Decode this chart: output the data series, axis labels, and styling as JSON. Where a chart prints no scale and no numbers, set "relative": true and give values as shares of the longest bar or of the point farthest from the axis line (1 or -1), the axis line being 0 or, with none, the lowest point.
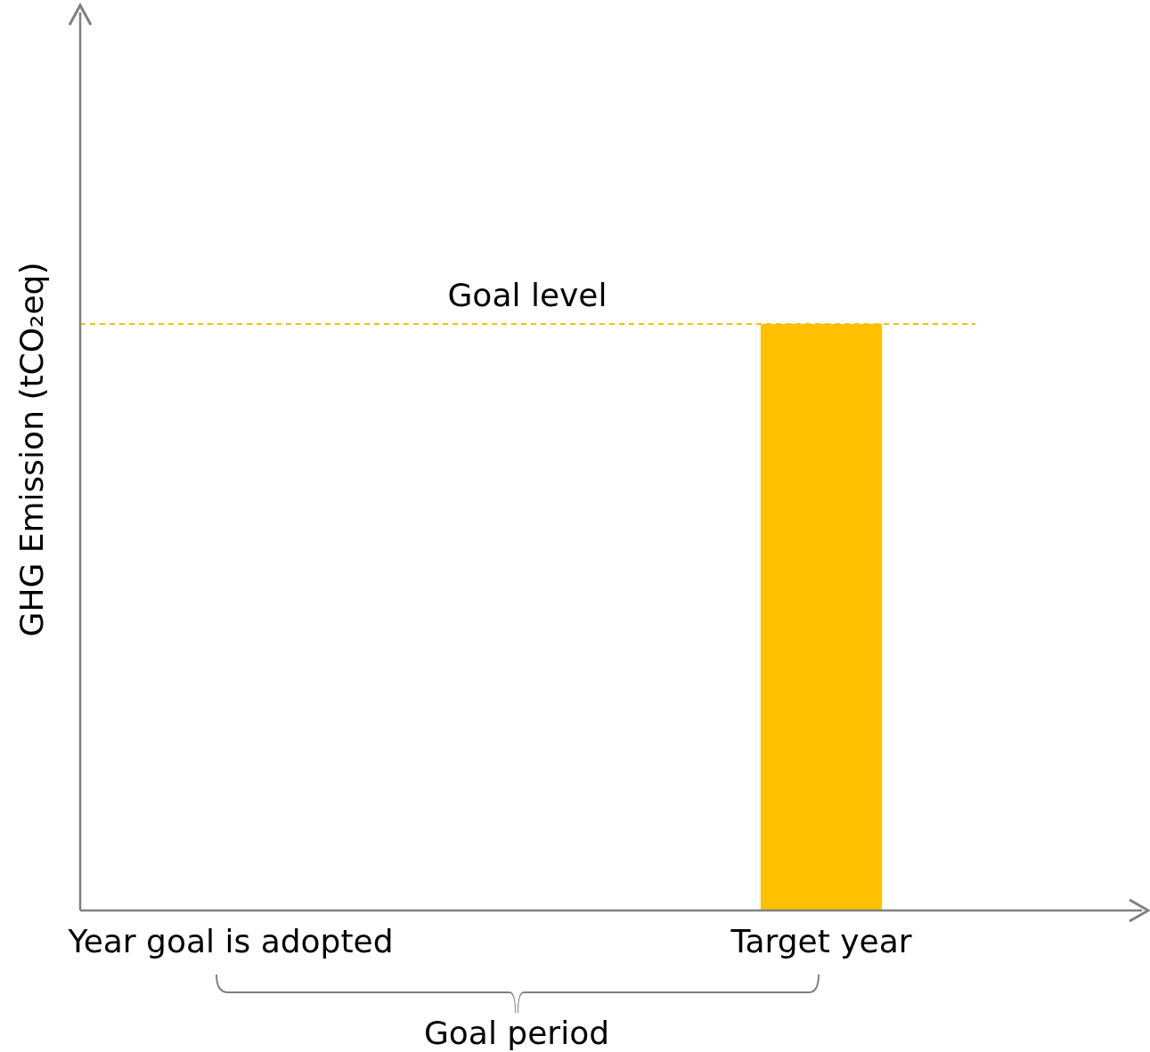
{
  "chart_data": {
    "type": "bar",
    "relative": true,
    "ylabel": "GHG Emission (tCO₂eq)",
    "categories": [
      "Year goal is adopted",
      "Target year"
    ],
    "values": [
      null,
      1
    ],
    "color": "#ffc000",
    "ref_lines": [
      {
        "axis": "y",
        "value": 1,
        "label": "Goal level",
        "color": "#ffc000",
        "line_style": "dashed"
      }
    ],
    "annotations": [
      "Goal period"
    ]
  }
}
